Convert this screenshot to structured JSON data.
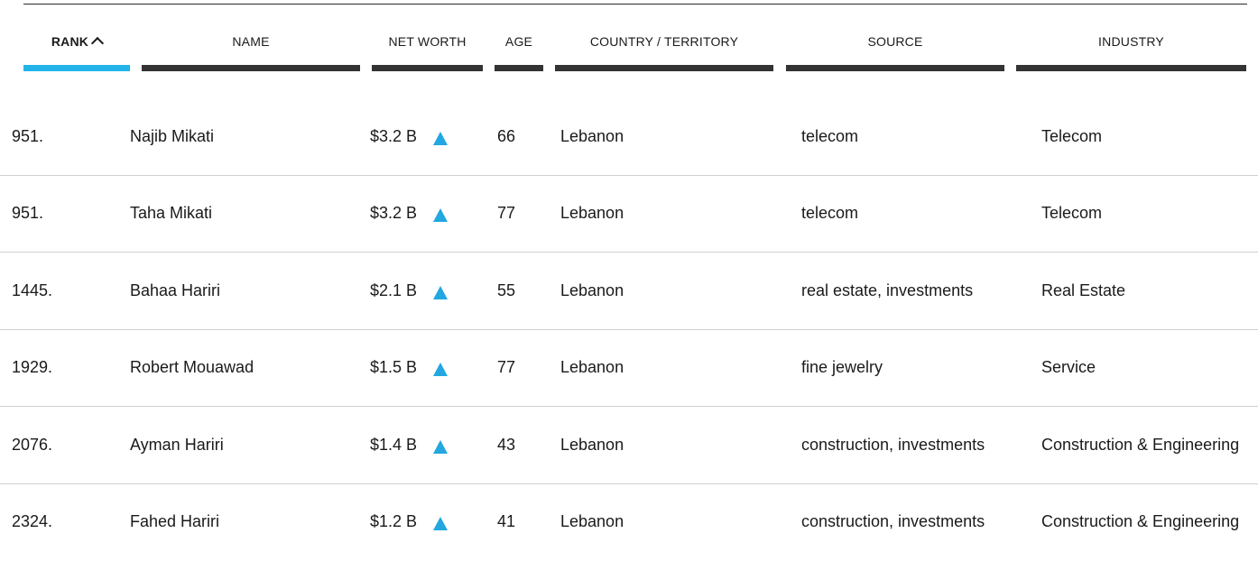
{
  "table": {
    "columns": [
      {
        "key": "rank",
        "label": "RANK",
        "active": true
      },
      {
        "key": "name",
        "label": "NAME",
        "active": false
      },
      {
        "key": "net_worth",
        "label": "NET WORTH",
        "active": false
      },
      {
        "key": "age",
        "label": "AGE",
        "active": false
      },
      {
        "key": "country",
        "label": "COUNTRY / TERRITORY",
        "active": false
      },
      {
        "key": "source",
        "label": "SOURCE",
        "active": false
      },
      {
        "key": "industry",
        "label": "INDUSTRY",
        "active": false
      }
    ],
    "sort_icon": "chevron-up-icon",
    "trend_icon": "triangle-up-icon",
    "accent_color": "#22b4e9",
    "rows": [
      {
        "rank": "951.",
        "name": "Najib Mikati",
        "net_worth": "$3.2 B",
        "age": "66",
        "country": "Lebanon",
        "source": "telecom",
        "industry": "Telecom"
      },
      {
        "rank": "951.",
        "name": "Taha Mikati",
        "net_worth": "$3.2 B",
        "age": "77",
        "country": "Lebanon",
        "source": "telecom",
        "industry": "Telecom"
      },
      {
        "rank": "1445.",
        "name": "Bahaa Hariri",
        "net_worth": "$2.1 B",
        "age": "55",
        "country": "Lebanon",
        "source": "real estate, investments",
        "industry": "Real Estate"
      },
      {
        "rank": "1929.",
        "name": "Robert Mouawad",
        "net_worth": "$1.5 B",
        "age": "77",
        "country": "Lebanon",
        "source": "fine jewelry",
        "industry": "Service"
      },
      {
        "rank": "2076.",
        "name": "Ayman Hariri",
        "net_worth": "$1.4 B",
        "age": "43",
        "country": "Lebanon",
        "source": "construction, investments",
        "industry": "Construction & Engineering"
      },
      {
        "rank": "2324.",
        "name": "Fahed Hariri",
        "net_worth": "$1.2 B",
        "age": "41",
        "country": "Lebanon",
        "source": "construction, investments",
        "industry": "Construction & Engineering"
      }
    ]
  }
}
